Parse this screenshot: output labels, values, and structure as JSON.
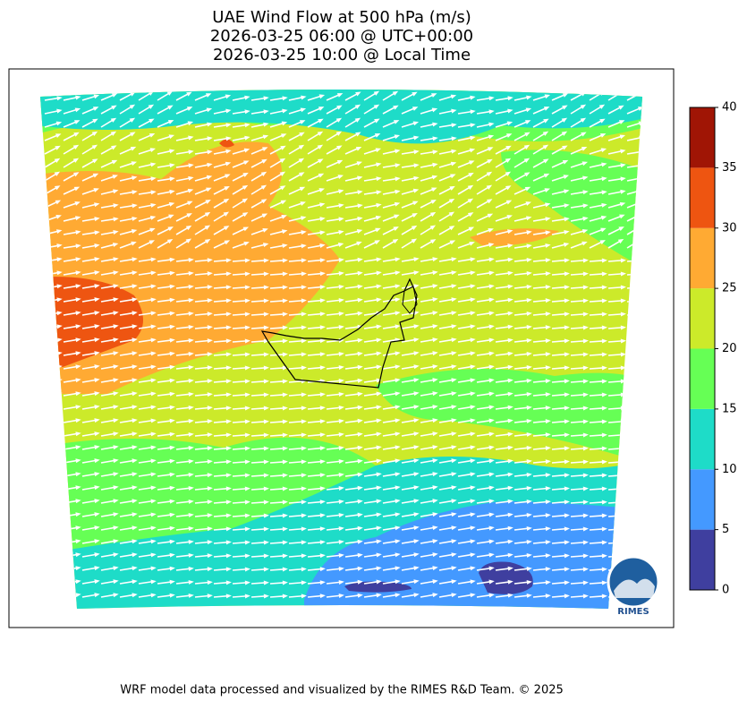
{
  "title": [
    "UAE Wind Flow at 500 hPa (m/s)",
    "2026-03-25 06:00 @ UTC+00:00",
    "2026-03-25 10:00 @ Local Time"
  ],
  "colorbar": {
    "lim": [
      0,
      40
    ],
    "ticks": [
      0,
      5,
      10,
      15,
      20,
      25,
      30,
      35,
      40
    ],
    "colors": [
      "#3f3f9f",
      "#4499ff",
      "#1edcc8",
      "#66ff55",
      "#ccea2a",
      "#ffaa33",
      "#ee5511",
      "#a01505"
    ]
  },
  "logo": "RIMES",
  "footer": "WRF model data processed and visualized by the RIMES R&D Team. © 2025"
}
